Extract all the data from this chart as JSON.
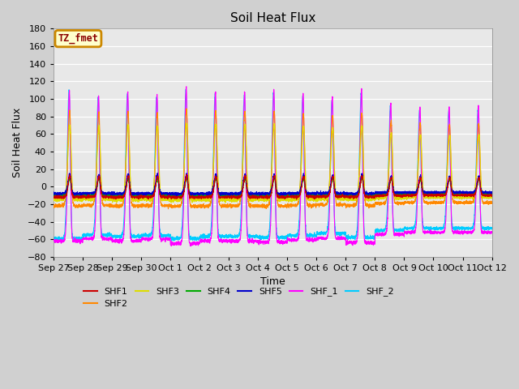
{
  "title": "Soil Heat Flux",
  "xlabel": "Time",
  "ylabel": "Soil Heat Flux",
  "ylim": [
    -80,
    180
  ],
  "yticks": [
    -80,
    -60,
    -40,
    -20,
    0,
    20,
    40,
    60,
    80,
    100,
    120,
    140,
    160,
    180
  ],
  "xtick_labels": [
    "Sep 27",
    "Sep 28",
    "Sep 29",
    "Sep 30",
    "Oct 1",
    "Oct 2",
    "Oct 3",
    "Oct 4",
    "Oct 5",
    "Oct 6",
    "Oct 7",
    "Oct 8",
    "Oct 9",
    "Oct 10",
    "Oct 11",
    "Oct 12"
  ],
  "series_colors": {
    "SHF1": "#cc0000",
    "SHF2": "#ff8800",
    "SHF3": "#dddd00",
    "SHF4": "#00aa00",
    "SHF5": "#0000cc",
    "SHF_1": "#ff00ff",
    "SHF_2": "#00ccff"
  },
  "legend_label": "TZ_fmet",
  "n_days": 15,
  "points_per_day": 288,
  "random_seed": 42
}
